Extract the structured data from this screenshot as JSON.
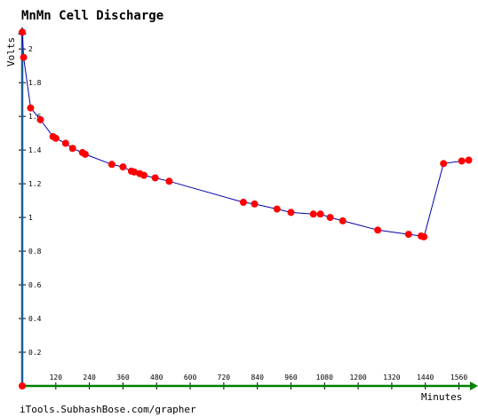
{
  "chart_data": {
    "type": "line",
    "title": "MnMn Cell Discharge",
    "xlabel": "Minutes",
    "ylabel": "Volts",
    "credit": "iTools.SubhashBose.com/grapher",
    "xlim": [
      0,
      1630
    ],
    "ylim": [
      0,
      2.1
    ],
    "x_ticks": [
      120,
      240,
      360,
      480,
      600,
      720,
      840,
      960,
      1080,
      1200,
      1320,
      1440,
      1560
    ],
    "y_ticks": [
      0.2,
      0.4,
      0.6,
      0.8,
      1,
      1.2,
      1.4,
      1.6,
      1.8,
      2
    ],
    "grid": false,
    "colors": {
      "line": "#0000aa",
      "marker": "#ff0000",
      "x_axis": "#008000",
      "y_axis": "#1a5e9a",
      "tick_text": "#000000"
    },
    "series": [
      {
        "x": [
          0,
          5,
          30,
          65,
          110,
          120,
          155,
          180,
          215,
          225,
          320,
          360,
          390,
          400,
          420,
          435,
          475,
          525,
          790,
          830,
          910,
          960,
          1040,
          1065,
          1100,
          1145,
          1270,
          1380,
          1425,
          1435,
          1505,
          1570,
          1595
        ],
        "y": [
          2.1,
          1.95,
          1.65,
          1.58,
          1.48,
          1.47,
          1.44,
          1.41,
          1.385,
          1.375,
          1.315,
          1.3,
          1.275,
          1.27,
          1.26,
          1.25,
          1.235,
          1.215,
          1.09,
          1.08,
          1.05,
          1.03,
          1.02,
          1.02,
          1.0,
          0.98,
          0.925,
          0.9,
          0.89,
          0.885,
          1.32,
          1.335,
          1.34
        ]
      }
    ]
  }
}
